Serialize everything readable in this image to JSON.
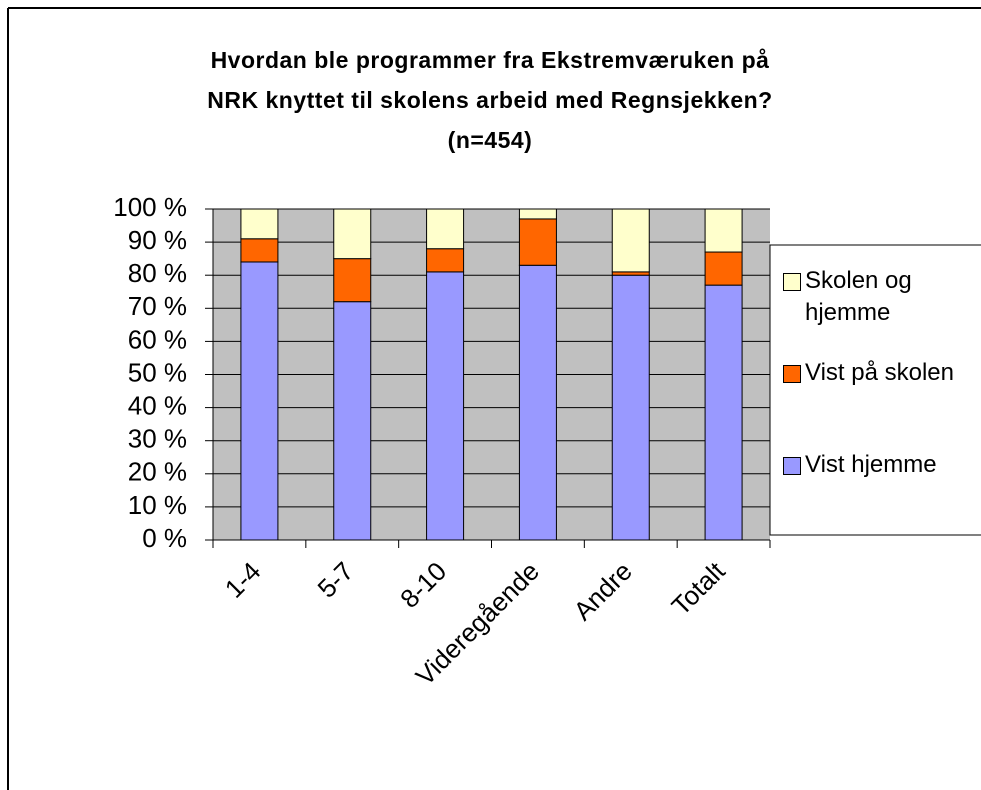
{
  "chart_data": {
    "type": "stacked_bar",
    "title": "Hvordan ble programmer fra Ekstremværuken på NRK knyttet til skolens arbeid med Regnsjekken? (n=454)",
    "categories": [
      "1-4",
      "5-7",
      "8-10",
      "Videregående",
      "Andre",
      "Totalt"
    ],
    "series": [
      {
        "name": "Vist hjemme",
        "color": "#9999ff",
        "values": [
          84,
          72,
          81,
          83,
          80,
          77
        ]
      },
      {
        "name": "Vist på skolen",
        "color": "#ff6600",
        "values": [
          7,
          13,
          7,
          14,
          1,
          10
        ]
      },
      {
        "name": "Skolen og hjemme",
        "color": "#ffffcc",
        "values": [
          9,
          15,
          12,
          3,
          19,
          13
        ]
      }
    ],
    "ylim": [
      0,
      100
    ],
    "yticks": [
      {
        "value": 0,
        "label": "0 %"
      },
      {
        "value": 10,
        "label": "10 %"
      },
      {
        "value": 20,
        "label": "20 %"
      },
      {
        "value": 30,
        "label": "30 %"
      },
      {
        "value": 40,
        "label": "40 %"
      },
      {
        "value": 50,
        "label": "50 %"
      },
      {
        "value": 60,
        "label": "60 %"
      },
      {
        "value": 70,
        "label": "70 %"
      },
      {
        "value": 80,
        "label": "80 %"
      },
      {
        "value": 90,
        "label": "90 %"
      },
      {
        "value": 100,
        "label": "100 %"
      }
    ],
    "grid": true,
    "legend": "right"
  }
}
